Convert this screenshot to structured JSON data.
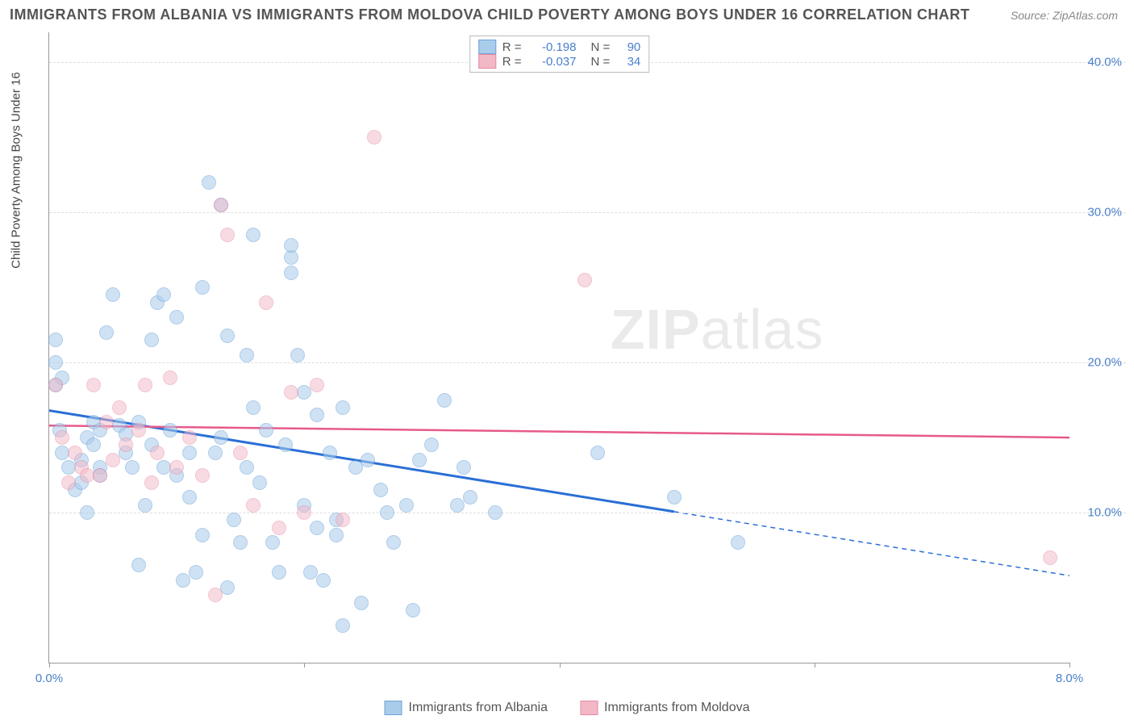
{
  "header": {
    "title": "IMMIGRANTS FROM ALBANIA VS IMMIGRANTS FROM MOLDOVA CHILD POVERTY AMONG BOYS UNDER 16 CORRELATION CHART",
    "source_prefix": "Source: ",
    "source_link": "ZipAtlas.com"
  },
  "chart": {
    "type": "scatter",
    "y_axis_title": "Child Poverty Among Boys Under 16",
    "xlim": [
      0,
      8
    ],
    "ylim": [
      0,
      42
    ],
    "x_ticks": [
      0,
      2,
      4,
      6,
      8
    ],
    "x_tick_labels": [
      "0.0%",
      "",
      "",
      "",
      "8.0%"
    ],
    "y_ticks": [
      10,
      20,
      30,
      40
    ],
    "y_tick_labels": [
      "10.0%",
      "20.0%",
      "30.0%",
      "40.0%"
    ],
    "grid_color": "#dddddd",
    "background_color": "#ffffff",
    "axis_color": "#999999",
    "tick_label_color": "#4a7fc9",
    "series": [
      {
        "name": "Immigrants from Albania",
        "fill": "#a9cceb",
        "stroke": "#6fa3d9",
        "fill_opacity": 0.55,
        "marker_radius": 9,
        "r_value": "-0.198",
        "n_value": "90",
        "trend": {
          "color": "#2a6fd6",
          "width": 3,
          "y_at_x0": 16.8,
          "y_at_xmax": 5.8,
          "solid_until_x": 4.9
        },
        "points": [
          [
            0.05,
            18.5
          ],
          [
            0.05,
            21.5
          ],
          [
            0.05,
            20.0
          ],
          [
            0.1,
            19.0
          ],
          [
            0.08,
            15.5
          ],
          [
            0.1,
            14.0
          ],
          [
            0.15,
            13.0
          ],
          [
            0.2,
            11.5
          ],
          [
            0.25,
            12.0
          ],
          [
            0.25,
            13.5
          ],
          [
            0.3,
            10.0
          ],
          [
            0.3,
            15.0
          ],
          [
            0.35,
            16.0
          ],
          [
            0.35,
            14.5
          ],
          [
            0.4,
            13.0
          ],
          [
            0.4,
            12.5
          ],
          [
            0.4,
            15.5
          ],
          [
            0.45,
            22.0
          ],
          [
            0.5,
            24.5
          ],
          [
            0.55,
            15.8
          ],
          [
            0.6,
            14.0
          ],
          [
            0.6,
            15.2
          ],
          [
            0.65,
            13.0
          ],
          [
            0.7,
            16.0
          ],
          [
            0.7,
            6.5
          ],
          [
            0.75,
            10.5
          ],
          [
            0.8,
            14.5
          ],
          [
            0.8,
            21.5
          ],
          [
            0.85,
            24.0
          ],
          [
            0.9,
            13.0
          ],
          [
            0.9,
            24.5
          ],
          [
            0.95,
            15.5
          ],
          [
            1.0,
            23.0
          ],
          [
            1.0,
            12.5
          ],
          [
            1.05,
            5.5
          ],
          [
            1.1,
            14.0
          ],
          [
            1.1,
            11.0
          ],
          [
            1.15,
            6.0
          ],
          [
            1.2,
            8.5
          ],
          [
            1.2,
            25.0
          ],
          [
            1.25,
            32.0
          ],
          [
            1.3,
            14.0
          ],
          [
            1.35,
            15.0
          ],
          [
            1.35,
            30.5
          ],
          [
            1.4,
            5.0
          ],
          [
            1.4,
            21.8
          ],
          [
            1.45,
            9.5
          ],
          [
            1.5,
            8.0
          ],
          [
            1.55,
            13.0
          ],
          [
            1.55,
            20.5
          ],
          [
            1.6,
            17.0
          ],
          [
            1.6,
            28.5
          ],
          [
            1.65,
            12.0
          ],
          [
            1.7,
            15.5
          ],
          [
            1.75,
            8.0
          ],
          [
            1.8,
            6.0
          ],
          [
            1.85,
            14.5
          ],
          [
            1.9,
            27.0
          ],
          [
            1.9,
            27.8
          ],
          [
            1.9,
            26.0
          ],
          [
            1.95,
            20.5
          ],
          [
            2.0,
            18.0
          ],
          [
            2.0,
            10.5
          ],
          [
            2.05,
            6.0
          ],
          [
            2.1,
            9.0
          ],
          [
            2.1,
            16.5
          ],
          [
            2.15,
            5.5
          ],
          [
            2.2,
            14.0
          ],
          [
            2.25,
            8.5
          ],
          [
            2.25,
            9.5
          ],
          [
            2.3,
            17.0
          ],
          [
            2.3,
            2.5
          ],
          [
            2.4,
            13.0
          ],
          [
            2.45,
            4.0
          ],
          [
            2.5,
            13.5
          ],
          [
            2.6,
            11.5
          ],
          [
            2.65,
            10.0
          ],
          [
            2.7,
            8.0
          ],
          [
            2.8,
            10.5
          ],
          [
            2.85,
            3.5
          ],
          [
            2.9,
            13.5
          ],
          [
            3.0,
            14.5
          ],
          [
            3.1,
            17.5
          ],
          [
            3.2,
            10.5
          ],
          [
            3.25,
            13.0
          ],
          [
            3.3,
            11.0
          ],
          [
            3.5,
            10.0
          ],
          [
            4.3,
            14.0
          ],
          [
            4.9,
            11.0
          ],
          [
            5.4,
            8.0
          ]
        ]
      },
      {
        "name": "Immigrants from Moldova",
        "fill": "#f2b8c6",
        "stroke": "#e68aa3",
        "fill_opacity": 0.5,
        "marker_radius": 9,
        "r_value": "-0.037",
        "n_value": "34",
        "trend": {
          "color": "#e75a8b",
          "width": 2.5,
          "y_at_x0": 15.8,
          "y_at_xmax": 15.0,
          "solid_until_x": 8.0
        },
        "points": [
          [
            0.05,
            18.5
          ],
          [
            0.1,
            15.0
          ],
          [
            0.15,
            12.0
          ],
          [
            0.2,
            14.0
          ],
          [
            0.25,
            13.0
          ],
          [
            0.3,
            12.5
          ],
          [
            0.35,
            18.5
          ],
          [
            0.4,
            12.5
          ],
          [
            0.45,
            16.0
          ],
          [
            0.5,
            13.5
          ],
          [
            0.55,
            17.0
          ],
          [
            0.6,
            14.5
          ],
          [
            0.7,
            15.5
          ],
          [
            0.75,
            18.5
          ],
          [
            0.8,
            12.0
          ],
          [
            0.85,
            14.0
          ],
          [
            0.95,
            19.0
          ],
          [
            1.0,
            13.0
          ],
          [
            1.1,
            15.0
          ],
          [
            1.2,
            12.5
          ],
          [
            1.3,
            4.5
          ],
          [
            1.35,
            30.5
          ],
          [
            1.4,
            28.5
          ],
          [
            1.5,
            14.0
          ],
          [
            1.6,
            10.5
          ],
          [
            1.7,
            24.0
          ],
          [
            1.8,
            9.0
          ],
          [
            1.9,
            18.0
          ],
          [
            2.0,
            10.0
          ],
          [
            2.1,
            18.5
          ],
          [
            2.3,
            9.5
          ],
          [
            2.55,
            35.0
          ],
          [
            4.2,
            25.5
          ],
          [
            7.85,
            7.0
          ]
        ]
      }
    ],
    "r_legend_labels": {
      "r": "R  =",
      "n": "N  ="
    },
    "watermark": {
      "bold": "ZIP",
      "rest": "atlas"
    }
  }
}
